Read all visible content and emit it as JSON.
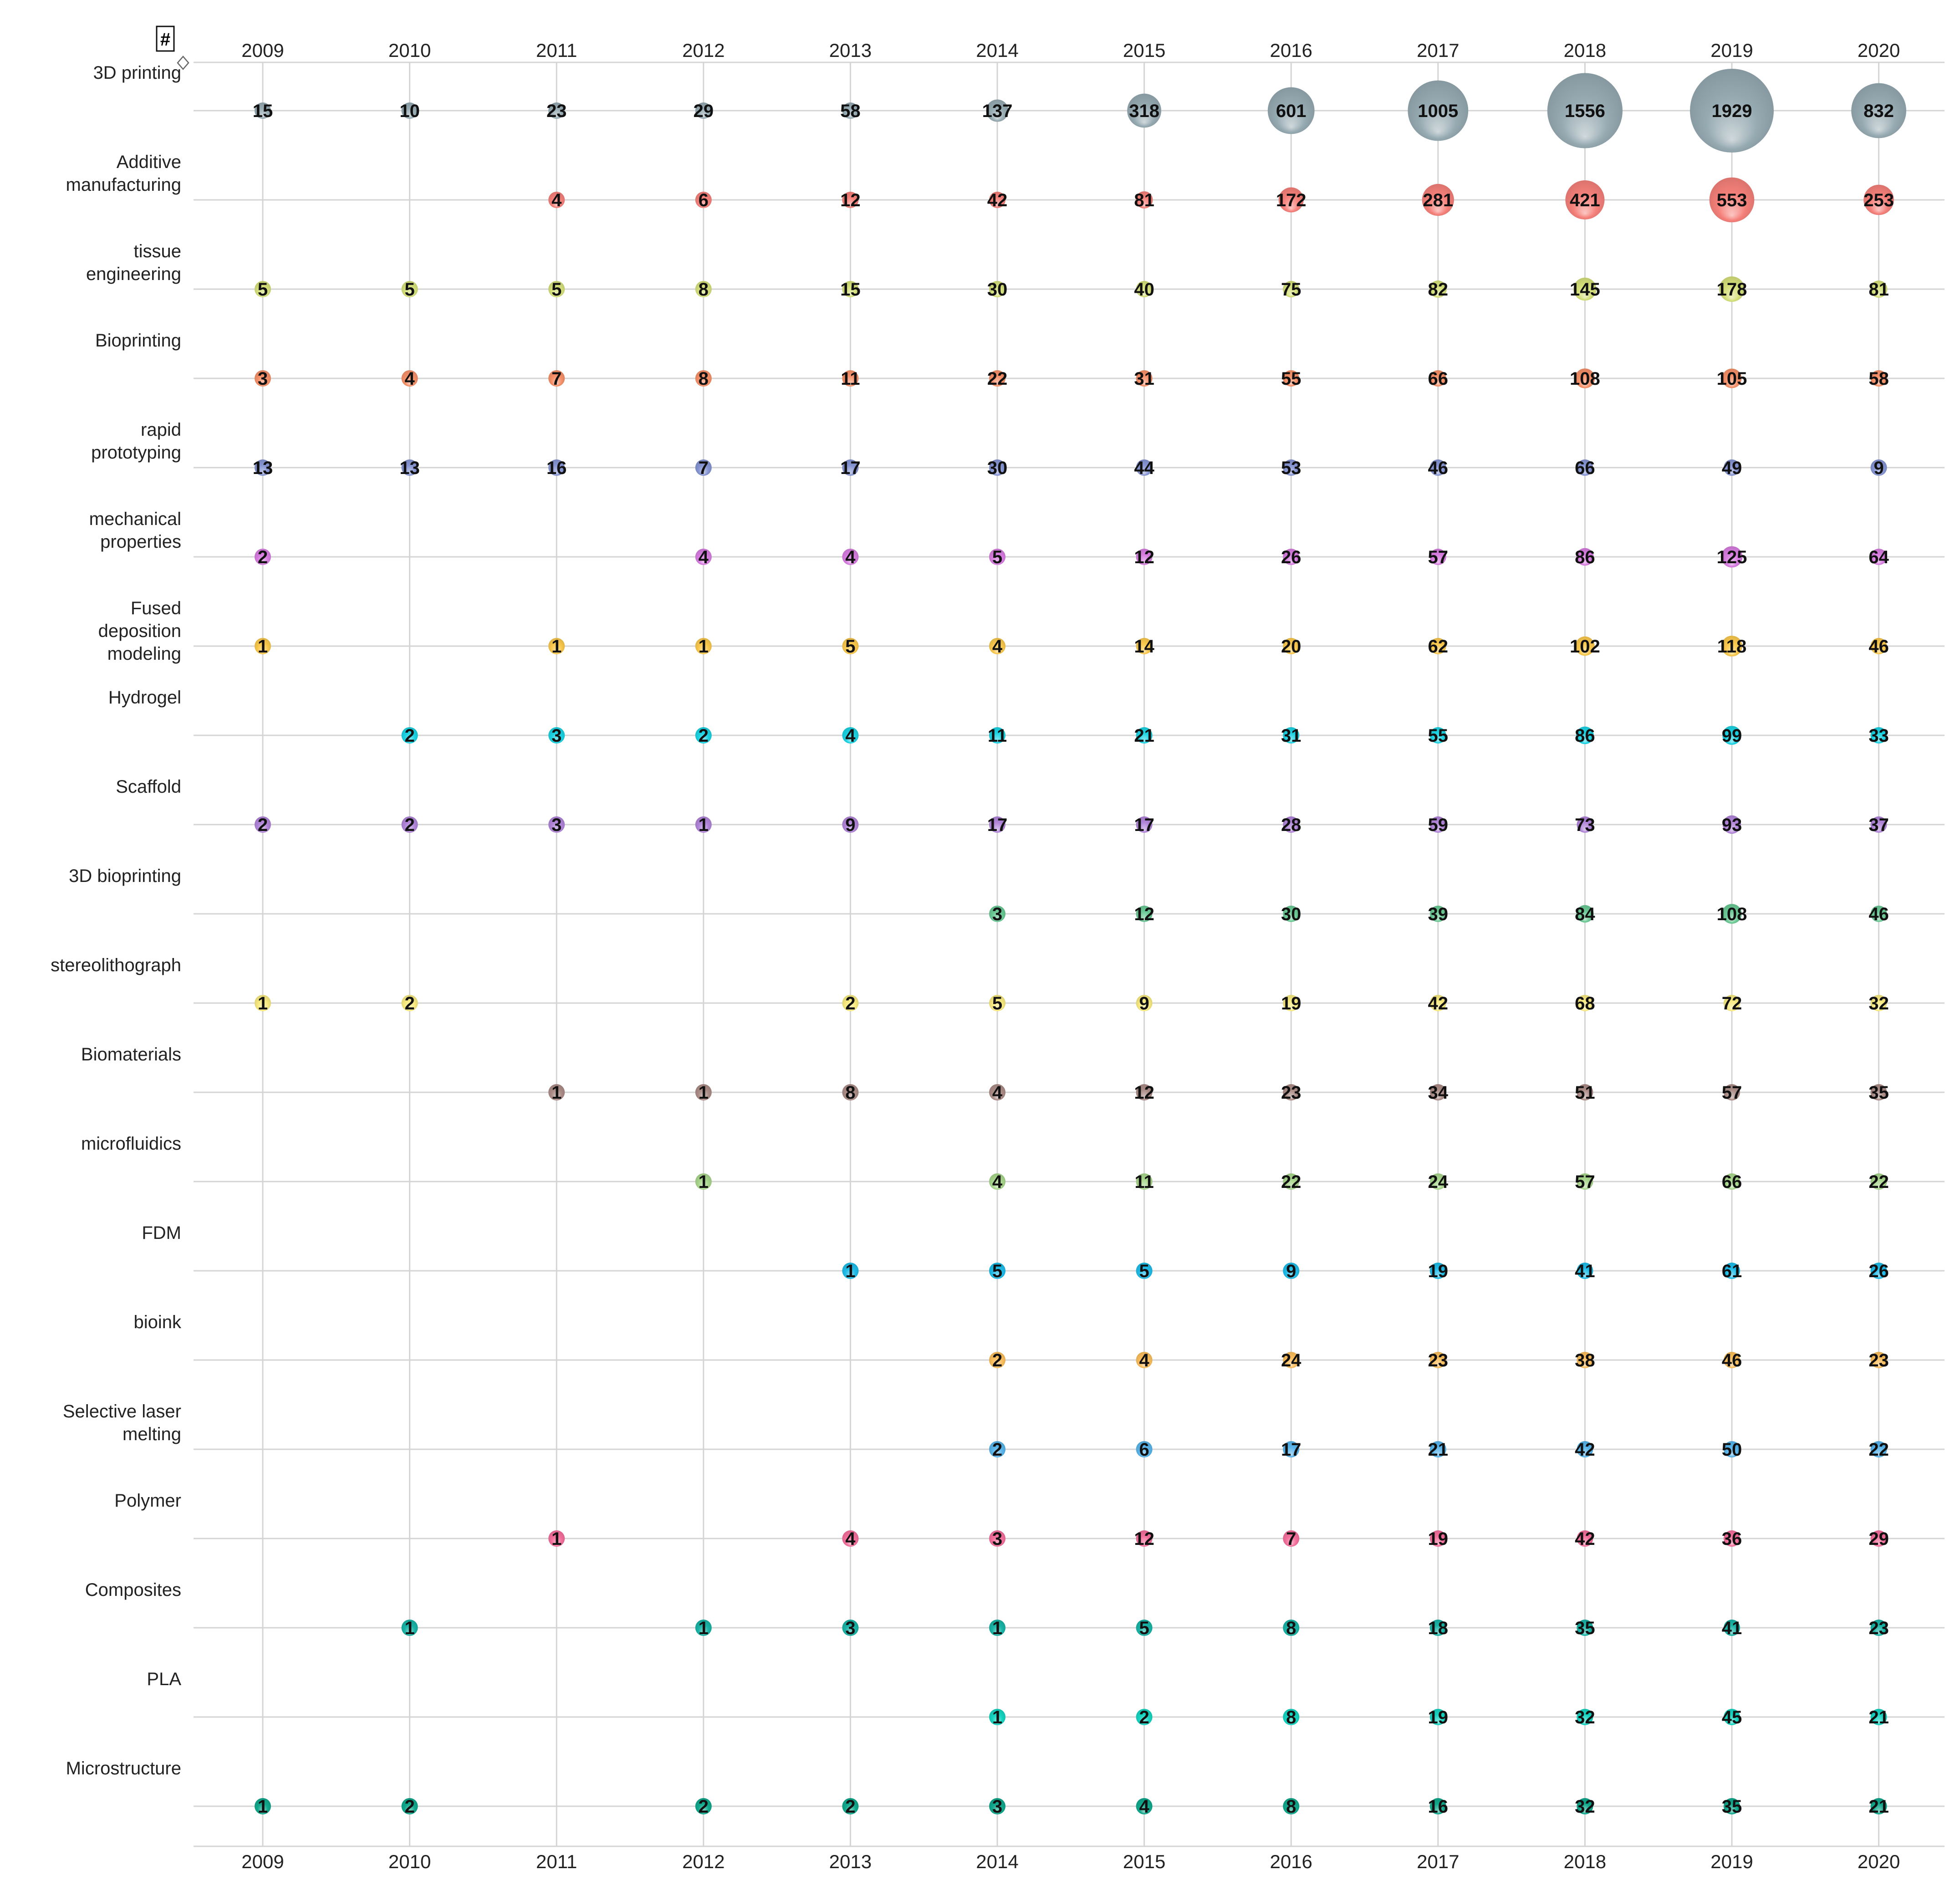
{
  "chart_data": {
    "type": "bubble-matrix",
    "years": [
      "2009",
      "2010",
      "2011",
      "2012",
      "2013",
      "2014",
      "2015",
      "2016",
      "2017",
      "2018",
      "2019",
      "2020"
    ],
    "header_symbol": "#",
    "sort_icon": "diamond-sort-icon",
    "rows": [
      {
        "label": [
          "3D printing"
        ],
        "color": "#96aab2",
        "values": [
          15,
          10,
          23,
          29,
          58,
          137,
          318,
          601,
          1005,
          1556,
          1929,
          832
        ]
      },
      {
        "label": [
          "Additive",
          "manufacturing"
        ],
        "color": "#f5807a",
        "values": [
          null,
          null,
          4,
          6,
          12,
          42,
          81,
          172,
          281,
          421,
          553,
          253
        ]
      },
      {
        "label": [
          "tissue",
          "engineering"
        ],
        "color": "#d5e07a",
        "values": [
          5,
          5,
          5,
          8,
          15,
          30,
          40,
          75,
          82,
          145,
          178,
          81
        ]
      },
      {
        "label": [
          "Bioprinting"
        ],
        "color": "#f69068",
        "values": [
          3,
          4,
          7,
          8,
          11,
          22,
          31,
          55,
          66,
          108,
          105,
          58
        ]
      },
      {
        "label": [
          "rapid",
          "prototyping"
        ],
        "color": "#8594d2",
        "values": [
          13,
          13,
          16,
          7,
          17,
          30,
          44,
          53,
          46,
          66,
          49,
          9
        ]
      },
      {
        "label": [
          "mechanical",
          "properties"
        ],
        "color": "#d77ce0",
        "values": [
          2,
          null,
          null,
          4,
          4,
          5,
          12,
          26,
          57,
          86,
          125,
          64
        ]
      },
      {
        "label": [
          "Fused",
          "deposition",
          "modeling"
        ],
        "color": "#fac84c",
        "values": [
          1,
          null,
          1,
          1,
          5,
          4,
          14,
          20,
          62,
          102,
          118,
          46
        ]
      },
      {
        "label": [
          "Hydrogel"
        ],
        "color": "#1ad2e2",
        "values": [
          null,
          2,
          3,
          2,
          4,
          11,
          21,
          31,
          55,
          86,
          99,
          33
        ]
      },
      {
        "label": [
          "Scaffold"
        ],
        "color": "#b084d8",
        "values": [
          2,
          2,
          3,
          1,
          9,
          17,
          17,
          28,
          59,
          73,
          93,
          37
        ]
      },
      {
        "label": [
          "3D bioprinting"
        ],
        "color": "#6ac994",
        "values": [
          null,
          null,
          null,
          null,
          null,
          3,
          12,
          30,
          39,
          84,
          108,
          46
        ]
      },
      {
        "label": [
          "stereolithograph"
        ],
        "color": "#f8ea80",
        "values": [
          1,
          2,
          null,
          null,
          2,
          5,
          9,
          19,
          42,
          68,
          72,
          32
        ]
      },
      {
        "label": [
          "Biomaterials"
        ],
        "color": "#ab8c86",
        "values": [
          null,
          null,
          1,
          1,
          8,
          4,
          12,
          23,
          34,
          51,
          57,
          35
        ]
      },
      {
        "label": [
          "microfluidics"
        ],
        "color": "#a8d68c",
        "values": [
          null,
          null,
          null,
          1,
          null,
          4,
          11,
          22,
          24,
          57,
          66,
          22
        ]
      },
      {
        "label": [
          "FDM"
        ],
        "color": "#1ebce8",
        "values": [
          null,
          null,
          null,
          null,
          1,
          5,
          5,
          9,
          19,
          41,
          61,
          26
        ]
      },
      {
        "label": [
          "bioink"
        ],
        "color": "#fbbe5c",
        "values": [
          null,
          null,
          null,
          null,
          null,
          2,
          4,
          24,
          23,
          38,
          46,
          23
        ]
      },
      {
        "label": [
          "Selective laser",
          "melting"
        ],
        "color": "#58b4ea",
        "values": [
          null,
          null,
          null,
          null,
          null,
          2,
          6,
          17,
          21,
          42,
          50,
          22
        ]
      },
      {
        "label": [
          "Polymer"
        ],
        "color": "#f36e9c",
        "values": [
          null,
          null,
          1,
          null,
          4,
          3,
          12,
          7,
          19,
          42,
          36,
          29
        ]
      },
      {
        "label": [
          "Composites"
        ],
        "color": "#18b4a6",
        "values": [
          null,
          1,
          null,
          1,
          3,
          1,
          5,
          8,
          18,
          35,
          41,
          23
        ]
      },
      {
        "label": [
          "PLA"
        ],
        "color": "#14d4c0",
        "values": [
          null,
          null,
          null,
          null,
          null,
          1,
          2,
          8,
          19,
          32,
          45,
          21
        ]
      },
      {
        "label": [
          "Microstructure"
        ],
        "color": "#10a88c",
        "values": [
          1,
          2,
          null,
          2,
          2,
          3,
          4,
          8,
          16,
          32,
          35,
          21
        ]
      }
    ]
  }
}
